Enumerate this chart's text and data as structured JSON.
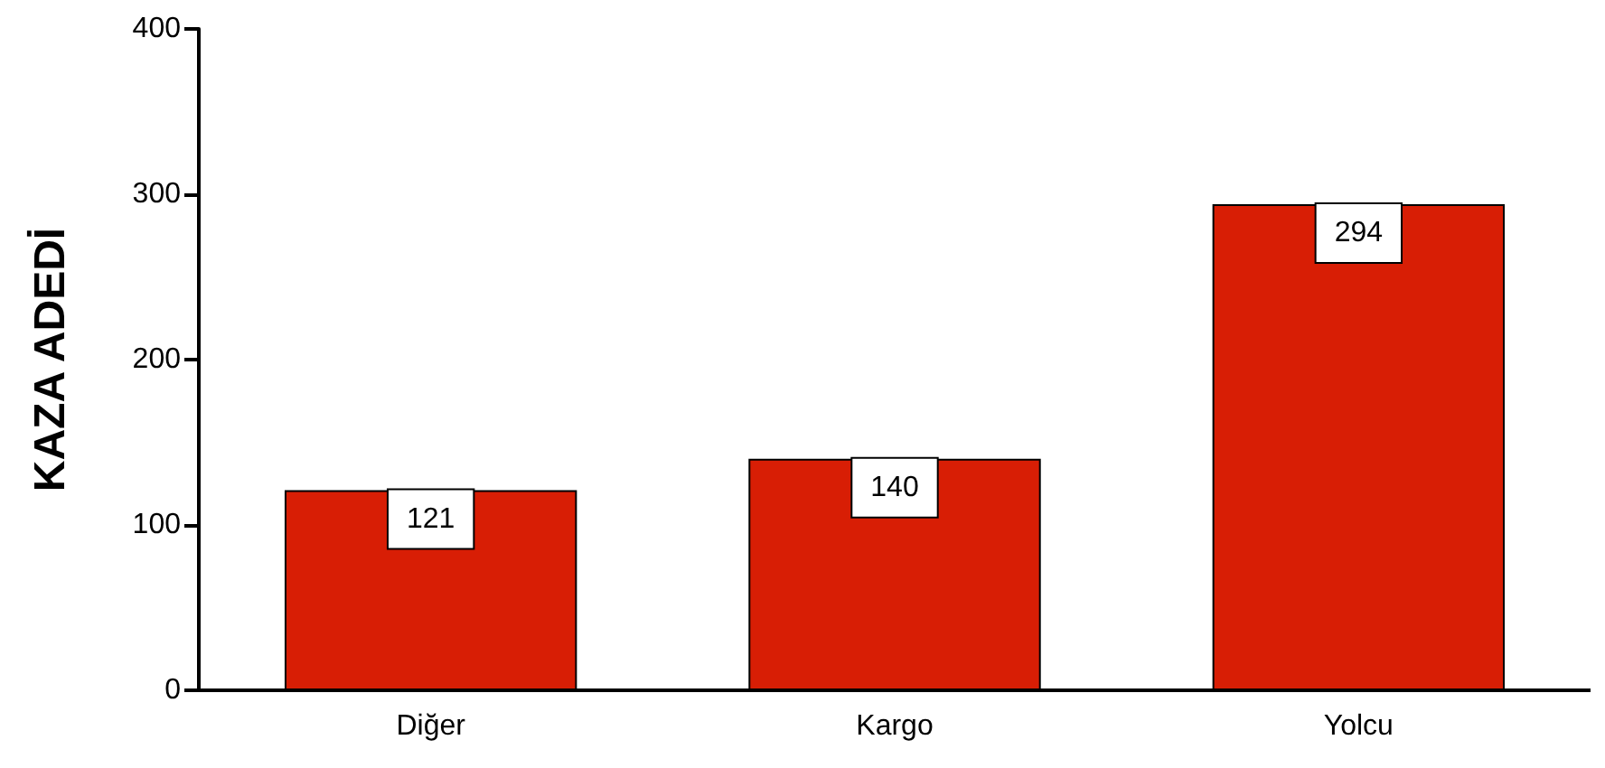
{
  "chart_data": {
    "type": "bar",
    "ylabel": "KAZA ADEDİ",
    "categories": [
      "Diğer",
      "Kargo",
      "Yolcu"
    ],
    "values": [
      121,
      140,
      294
    ],
    "color": "#d81e05",
    "ylim": [
      0,
      400
    ],
    "yticks": [
      0,
      100,
      200,
      300,
      400
    ],
    "grid": false,
    "data_labels": true
  }
}
